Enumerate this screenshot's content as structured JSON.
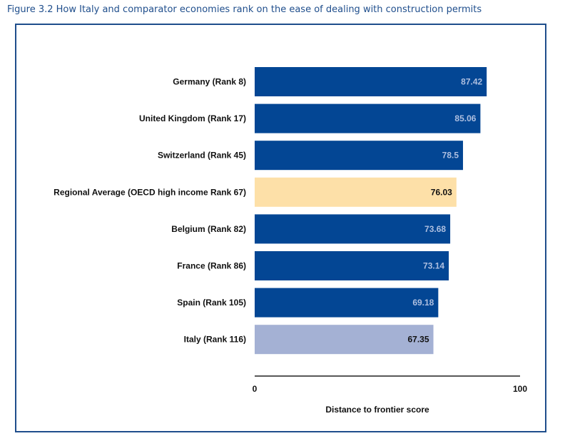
{
  "figure": {
    "title": "Figure 3.2 How Italy and comparator economies rank on the ease of dealing with construction permits"
  },
  "colors": {
    "title": "#1f4e8c",
    "frame": "#1f4e8c",
    "default_bar": "#034694",
    "regional_bar": "#fde0a8",
    "italy_bar": "#a4b1d4",
    "light_label": "#aebfe0",
    "dark_label": "#111111"
  },
  "chart_data": {
    "type": "bar",
    "orientation": "horizontal",
    "categories": [
      "Germany (Rank 8)",
      "United Kingdom (Rank 17)",
      "Switzerland (Rank 45)",
      "Regional Average (OECD high income Rank 67)",
      "Belgium (Rank 82)",
      "France (Rank 86)",
      "Spain (Rank 105)",
      "Italy (Rank 116)"
    ],
    "values": [
      87.42,
      85.06,
      78.5,
      76.03,
      73.68,
      73.14,
      69.18,
      67.35
    ],
    "value_labels": [
      "87.42",
      "85.06",
      "78.5",
      "76.03",
      "73.68",
      "73.14",
      "69.18",
      "67.35"
    ],
    "bar_colors": [
      "#034694",
      "#034694",
      "#034694",
      "#fde0a8",
      "#034694",
      "#034694",
      "#034694",
      "#a4b1d4"
    ],
    "label_colors": [
      "#aebfe0",
      "#aebfe0",
      "#aebfe0",
      "#111111",
      "#aebfe0",
      "#aebfe0",
      "#aebfe0",
      "#111111"
    ],
    "title": "",
    "xlabel": "Distance to frontier score",
    "ylabel": "",
    "xlim": [
      0,
      100
    ],
    "x_tick_labels": [
      "0",
      "100"
    ],
    "grid": false,
    "legend": "none"
  }
}
